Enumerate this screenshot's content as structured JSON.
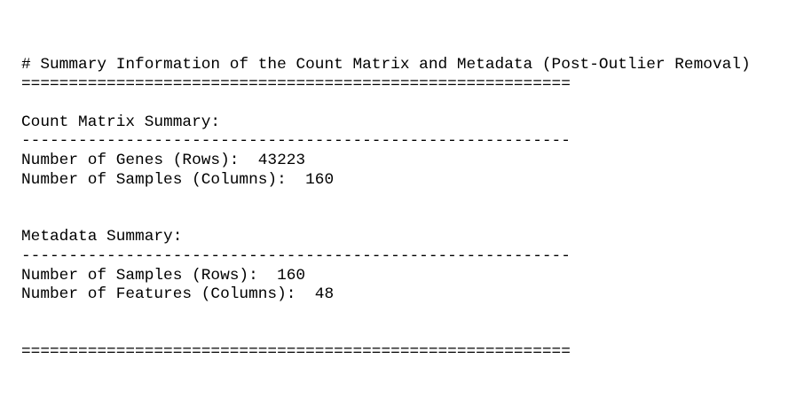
{
  "title": "# Summary Information of the Count Matrix and Metadata (Post-Outlier Removal)",
  "top_rule": "==========================================================",
  "sections": [
    {
      "heading": "Count Matrix Summary:",
      "rule": "----------------------------------------------------------",
      "items": [
        {
          "label": "Number of Genes (Rows):",
          "value": 43223
        },
        {
          "label": "Number of Samples (Columns):",
          "value": 160
        }
      ]
    },
    {
      "heading": "Metadata Summary:",
      "rule": "----------------------------------------------------------",
      "items": [
        {
          "label": "Number of Samples (Rows):",
          "value": 160
        },
        {
          "label": "Number of Features (Columns):",
          "value": 48
        }
      ]
    }
  ],
  "bottom_rule": "=========================================================="
}
